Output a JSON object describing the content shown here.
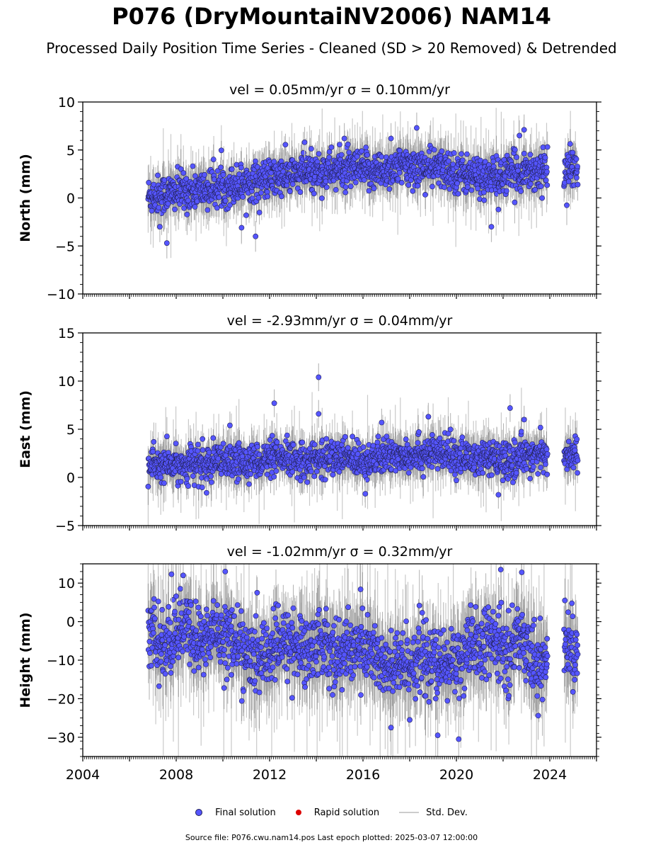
{
  "title": "P076 (DryMountaiNV2006) NAM14",
  "subtitle": "Processed Daily Position Time Series - Cleaned (SD > 20 Removed) & Detrended",
  "legend": {
    "final": "Final solution",
    "rapid": "Rapid solution",
    "std": "Std. Dev."
  },
  "footer": "Source file: P076.cwu.nam14.pos  Last epoch plotted: 2025-03-07 12:00:00",
  "colors": {
    "final_fill": "#5555ff",
    "final_edge": "#222255",
    "rapid": "#dd0000",
    "std_dev": "#bbbbbb",
    "std_dense": "#555555"
  },
  "chart_data": [
    {
      "type": "scatter",
      "title": "vel = 0.05mm/yr   σ = 0.10mm/yr",
      "ylabel": "North (mm)",
      "xlim": [
        2004,
        2026
      ],
      "ylim": [
        -10,
        10
      ],
      "yticks": [
        "−10",
        "−5",
        "0",
        "5",
        "10"
      ],
      "ytick_values": [
        -10,
        -5,
        0,
        5,
        10
      ],
      "xtick_labels_shown": false,
      "trend": [
        [
          2006.8,
          0.2
        ],
        [
          2008.0,
          0.6
        ],
        [
          2009.3,
          0.9
        ],
        [
          2010.3,
          1.3
        ],
        [
          2011.5,
          1.8
        ],
        [
          2012.5,
          2.2
        ],
        [
          2013.5,
          2.6
        ],
        [
          2014.5,
          2.9
        ],
        [
          2015.5,
          2.9
        ],
        [
          2016.5,
          2.8
        ],
        [
          2017.5,
          3.2
        ],
        [
          2018.5,
          3.2
        ],
        [
          2019.5,
          3.0
        ],
        [
          2020.5,
          2.4
        ],
        [
          2021.5,
          2.1
        ],
        [
          2022.3,
          2.4
        ],
        [
          2023.0,
          2.9
        ],
        [
          2023.8,
          2.8
        ],
        [
          2025.2,
          3.1
        ]
      ],
      "scatter": 1.0,
      "gaps": [
        [
          2023.9,
          2024.6
        ]
      ],
      "outliers": [
        {
          "x": 2007.6,
          "y": -4.7
        },
        {
          "x": 2007.3,
          "y": -3.0
        },
        {
          "x": 2010.8,
          "y": -3.1
        },
        {
          "x": 2011.4,
          "y": -4.0
        },
        {
          "x": 2017.2,
          "y": 6.2
        },
        {
          "x": 2018.3,
          "y": 7.3
        },
        {
          "x": 2021.5,
          "y": -3.0
        },
        {
          "x": 2022.7,
          "y": 6.5
        },
        {
          "x": 2022.9,
          "y": 7.1
        },
        {
          "x": 2013.5,
          "y": 5.8
        },
        {
          "x": 2015.2,
          "y": 6.2
        },
        {
          "x": 2021.8,
          "y": -1.2
        }
      ]
    },
    {
      "type": "scatter",
      "title": "vel = -2.93mm/yr   σ = 0.04mm/yr",
      "ylabel": "East (mm)",
      "xlim": [
        2004,
        2026
      ],
      "ylim": [
        -5,
        15
      ],
      "yticks": [
        "−5",
        "0",
        "5",
        "10",
        "15"
      ],
      "ytick_values": [
        -5,
        0,
        5,
        10,
        15
      ],
      "xtick_labels_shown": false,
      "trend": [
        [
          2006.8,
          1.2
        ],
        [
          2008.5,
          1.3
        ],
        [
          2010.3,
          1.5
        ],
        [
          2012.0,
          1.9
        ],
        [
          2013.5,
          1.8
        ],
        [
          2015.0,
          2.1
        ],
        [
          2016.5,
          1.8
        ],
        [
          2017.3,
          2.3
        ],
        [
          2018.5,
          2.5
        ],
        [
          2019.5,
          2.4
        ],
        [
          2020.5,
          2.0
        ],
        [
          2021.5,
          1.9
        ],
        [
          2022.3,
          1.6
        ],
        [
          2023.0,
          2.5
        ],
        [
          2023.8,
          2.1
        ],
        [
          2025.2,
          2.4
        ]
      ],
      "scatter": 0.9,
      "gaps": [
        [
          2023.9,
          2024.6
        ]
      ],
      "outliers": [
        {
          "x": 2014.1,
          "y": 10.4
        },
        {
          "x": 2012.2,
          "y": 7.7
        },
        {
          "x": 2022.3,
          "y": 7.2
        },
        {
          "x": 2014.1,
          "y": 6.6
        },
        {
          "x": 2016.8,
          "y": 5.7
        },
        {
          "x": 2010.3,
          "y": 5.4
        },
        {
          "x": 2018.8,
          "y": 6.3
        },
        {
          "x": 2021.8,
          "y": -1.8
        },
        {
          "x": 2016.1,
          "y": -1.7
        },
        {
          "x": 2009.3,
          "y": -1.6
        },
        {
          "x": 2022.9,
          "y": 6.0
        }
      ]
    },
    {
      "type": "scatter",
      "title": "vel = -1.02mm/yr   σ = 0.32mm/yr",
      "ylabel": "Height (mm)",
      "xlim": [
        2004,
        2026
      ],
      "ylim": [
        -35,
        15
      ],
      "yticks": [
        "−30",
        "−20",
        "−10",
        "0",
        "10"
      ],
      "ytick_values": [
        -30,
        -20,
        -10,
        0,
        10
      ],
      "xticks": [
        "2004",
        "2008",
        "2012",
        "2016",
        "2020",
        "2024"
      ],
      "xtick_values": [
        2004,
        2008,
        2012,
        2016,
        2020,
        2024
      ],
      "xtick_labels_shown": true,
      "trend": [
        [
          2006.8,
          -3
        ],
        [
          2007.5,
          -7
        ],
        [
          2008.3,
          -1
        ],
        [
          2009.0,
          -6
        ],
        [
          2009.7,
          -2
        ],
        [
          2010.5,
          -5
        ],
        [
          2011.3,
          -10
        ],
        [
          2012.0,
          -8
        ],
        [
          2012.8,
          -5
        ],
        [
          2013.5,
          -8
        ],
        [
          2014.2,
          -5
        ],
        [
          2015.0,
          -9
        ],
        [
          2015.7,
          -6
        ],
        [
          2016.5,
          -8
        ],
        [
          2017.0,
          -13
        ],
        [
          2017.8,
          -11
        ],
        [
          2018.5,
          -9
        ],
        [
          2019.3,
          -12
        ],
        [
          2020.0,
          -10
        ],
        [
          2020.7,
          -7
        ],
        [
          2021.5,
          -5
        ],
        [
          2022.3,
          -8
        ],
        [
          2022.8,
          -3
        ],
        [
          2023.5,
          -12
        ],
        [
          2024.7,
          -6
        ],
        [
          2025.2,
          -8
        ]
      ],
      "scatter": 4.5,
      "gaps": [
        [
          2023.9,
          2024.6
        ]
      ],
      "outliers": [
        {
          "x": 2020.1,
          "y": -30.5
        },
        {
          "x": 2019.2,
          "y": -29.5
        },
        {
          "x": 2021.9,
          "y": 13.5
        },
        {
          "x": 2022.8,
          "y": 12.8
        },
        {
          "x": 2008.3,
          "y": 12.0
        },
        {
          "x": 2010.1,
          "y": 13.0
        },
        {
          "x": 2007.8,
          "y": 12.3
        },
        {
          "x": 2017.2,
          "y": -27.5
        },
        {
          "x": 2018.0,
          "y": -25.5
        }
      ]
    }
  ]
}
